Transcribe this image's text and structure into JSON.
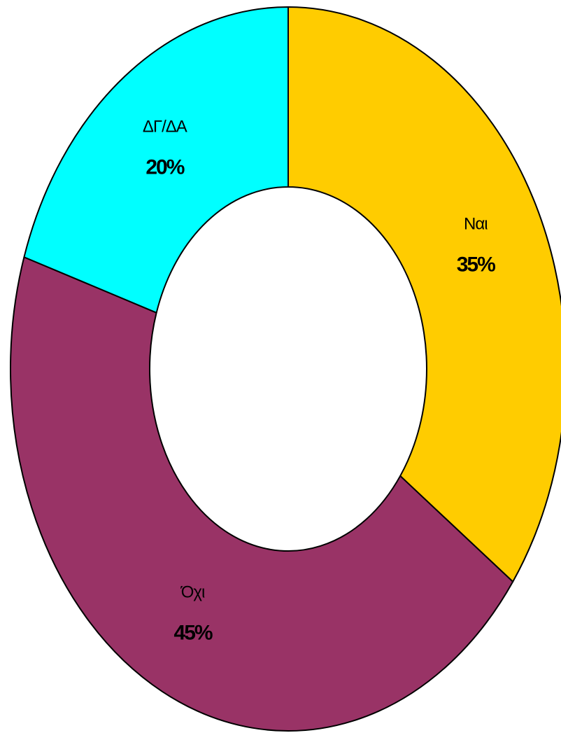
{
  "chart_data": {
    "type": "donut",
    "categories": [
      "Ναι",
      "Όχι",
      "ΔΓ/ΔΑ"
    ],
    "values": [
      35,
      45,
      20
    ],
    "value_labels": [
      "35%",
      "45%",
      "20%"
    ],
    "colors": [
      "#ffcc00",
      "#993366",
      "#00ffff"
    ]
  }
}
